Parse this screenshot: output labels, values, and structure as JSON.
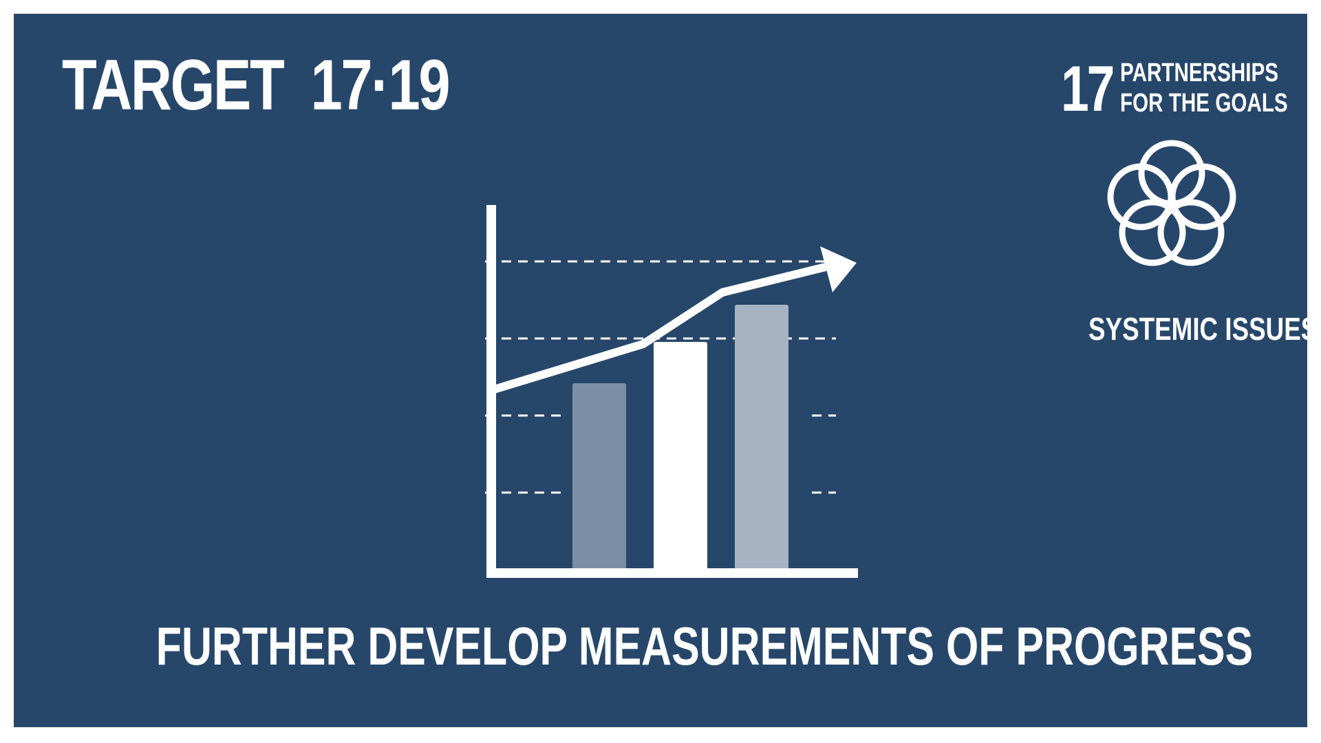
{
  "header": {
    "target_word": "TARGET",
    "target_number": "17·19"
  },
  "goal": {
    "number": "17",
    "name_line1": "PARTNERSHIPS",
    "name_line2": "FOR THE GOALS",
    "icon": "five-rings-icon"
  },
  "category": "SYSTEMIC ISSUES",
  "caption": "FURTHER DEVELOP MEASUREMENTS OF PROGRESS",
  "illustration": {
    "icon": "rising-bar-chart-icon",
    "bar_levels": [
      0.51,
      0.62,
      0.72
    ],
    "colors": {
      "background": "#27476a",
      "foreground": "#ffffff",
      "bar1": "#7a8fa5",
      "bar2": "#ffffff",
      "bar3": "#a5b3c2"
    }
  }
}
